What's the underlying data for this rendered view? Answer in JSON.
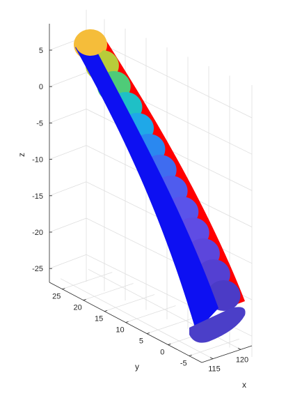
{
  "chart_data": {
    "type": "3d-surface",
    "title": "",
    "xlabel": "x",
    "ylabel": "y",
    "zlabel": "z",
    "x_ticks": [
      "115",
      "120"
    ],
    "y_ticks": [
      "-5",
      "0",
      "5",
      "10",
      "15",
      "20",
      "25"
    ],
    "z_ticks": [
      "5",
      "0",
      "-5",
      "-10",
      "-15",
      "-20",
      "-25"
    ],
    "z_range": [
      -27,
      7
    ],
    "y_range": [
      -8,
      28
    ],
    "x_range": [
      113,
      122
    ],
    "grid": true,
    "legend": "none",
    "colors": {
      "side_face": "#0d10f2",
      "back_strip": "#ff0000",
      "cap_top": "#f5bd3a",
      "cap_bottom": "#4b3fc8",
      "axes": "#262626",
      "grid": "#dedede"
    },
    "cross_sections": {
      "count": 13,
      "colormap_from_top_to_bottom": [
        "#f5bd3a",
        "#b8cc3a",
        "#4fcb78",
        "#1fc0c6",
        "#1fa8e8",
        "#2a88f0",
        "#3f6cf0",
        "#4f5cee",
        "#5a53ea",
        "#5f4ce4",
        "#5c46dc",
        "#5440d2",
        "#4b3bc6"
      ]
    }
  }
}
